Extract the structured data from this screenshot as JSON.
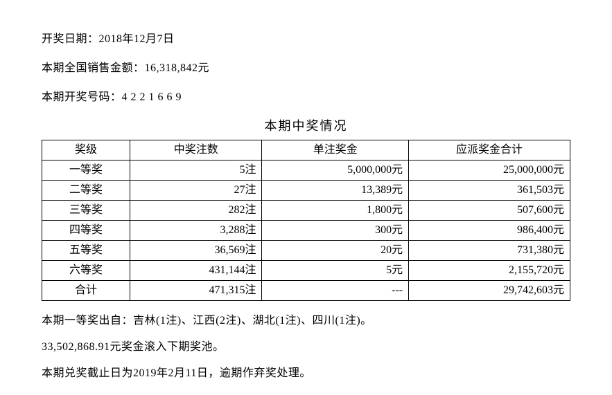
{
  "draw_date_label": "开奖日期：",
  "draw_date_value": "2018年12月7日",
  "sales_label": "本期全国销售金额：",
  "sales_value": "16,318,842元",
  "numbers_label": "本期开奖号码：",
  "numbers_value": "4 2 2 1 6 6 9",
  "section_title": "本期中奖情况",
  "table": {
    "columns": [
      "奖级",
      "中奖注数",
      "单注奖金",
      "应派奖金合计"
    ],
    "rows": [
      {
        "level": "一等奖",
        "count": "5注",
        "unit": "5,000,000元",
        "total": "25,000,000元"
      },
      {
        "level": "二等奖",
        "count": "27注",
        "unit": "13,389元",
        "total": "361,503元"
      },
      {
        "level": "三等奖",
        "count": "282注",
        "unit": "1,800元",
        "total": "507,600元"
      },
      {
        "level": "四等奖",
        "count": "3,288注",
        "unit": "300元",
        "total": "986,400元"
      },
      {
        "level": "五等奖",
        "count": "36,569注",
        "unit": "20元",
        "total": "731,380元"
      },
      {
        "level": "六等奖",
        "count": "431,144注",
        "unit": "5元",
        "total": "2,155,720元"
      },
      {
        "level": "合计",
        "count": "471,315注",
        "unit": "---",
        "total": "29,742,603元"
      }
    ]
  },
  "first_prize_origin_label": "本期一等奖出自：",
  "first_prize_origin_value": "吉林(1注)、江西(2注)、湖北(1注)、四川(1注)。",
  "rollover_text": "33,502,868.91元奖金滚入下期奖池。",
  "deadline_text": "本期兑奖截止日为2019年2月11日，逾期作弃奖处理。"
}
